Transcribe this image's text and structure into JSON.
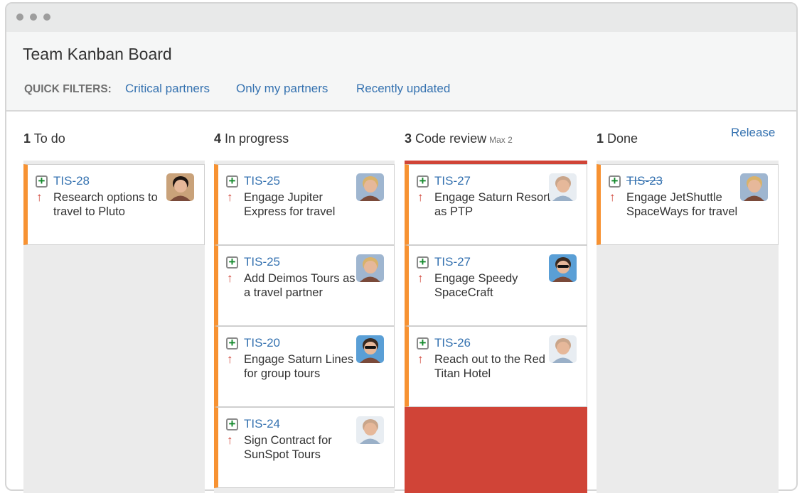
{
  "window": {
    "title": "Team Kanban Board"
  },
  "quick_filters": {
    "label": "QUICK FILTERS:",
    "items": [
      "Critical partners",
      "Only my partners",
      "Recently updated"
    ]
  },
  "release_label": "Release",
  "colors": {
    "link": "#3572b0",
    "priority": "#d04437",
    "card_edge": "#f79232",
    "over_limit": "#d04437",
    "add_icon": "#14892c"
  },
  "columns": [
    {
      "count": "1",
      "name": "To do",
      "max": "",
      "cards": [
        {
          "key": "TIS-28",
          "summary": "Research options to travel to Pluto",
          "avatar": "woman-dark-hair",
          "done": false
        }
      ]
    },
    {
      "count": "4",
      "name": "In progress",
      "max": "",
      "cards": [
        {
          "key": "TIS-25",
          "summary": "Engage Jupiter Express for travel",
          "avatar": "woman-blonde",
          "done": false
        },
        {
          "key": "TIS-25",
          "summary": "Add Deimos Tours as a travel partner",
          "avatar": "woman-blonde",
          "done": false
        },
        {
          "key": "TIS-20",
          "summary": "Engage Saturn Lines for group tours",
          "avatar": "man-sunglasses",
          "done": false
        },
        {
          "key": "TIS-24",
          "summary": "Sign Contract for SunSpot Tours",
          "avatar": "man-bald",
          "done": false
        }
      ]
    },
    {
      "count": "3",
      "name": "Code review",
      "max": "Max 2",
      "cards": [
        {
          "key": "TIS-27",
          "summary": "Engage Saturn Resort as PTP",
          "avatar": "man-bald",
          "done": false
        },
        {
          "key": "TIS-27",
          "summary": "Engage Speedy SpaceCraft",
          "avatar": "man-sunglasses",
          "done": false
        },
        {
          "key": "TIS-26",
          "summary": "Reach out to the Red Titan Hotel",
          "avatar": "man-bald",
          "done": false
        }
      ]
    },
    {
      "count": "1",
      "name": "Done",
      "max": "",
      "cards": [
        {
          "key": "TIS-23",
          "summary": "Engage JetShuttle SpaceWays for travel",
          "avatar": "woman-blonde",
          "done": true
        }
      ]
    }
  ]
}
